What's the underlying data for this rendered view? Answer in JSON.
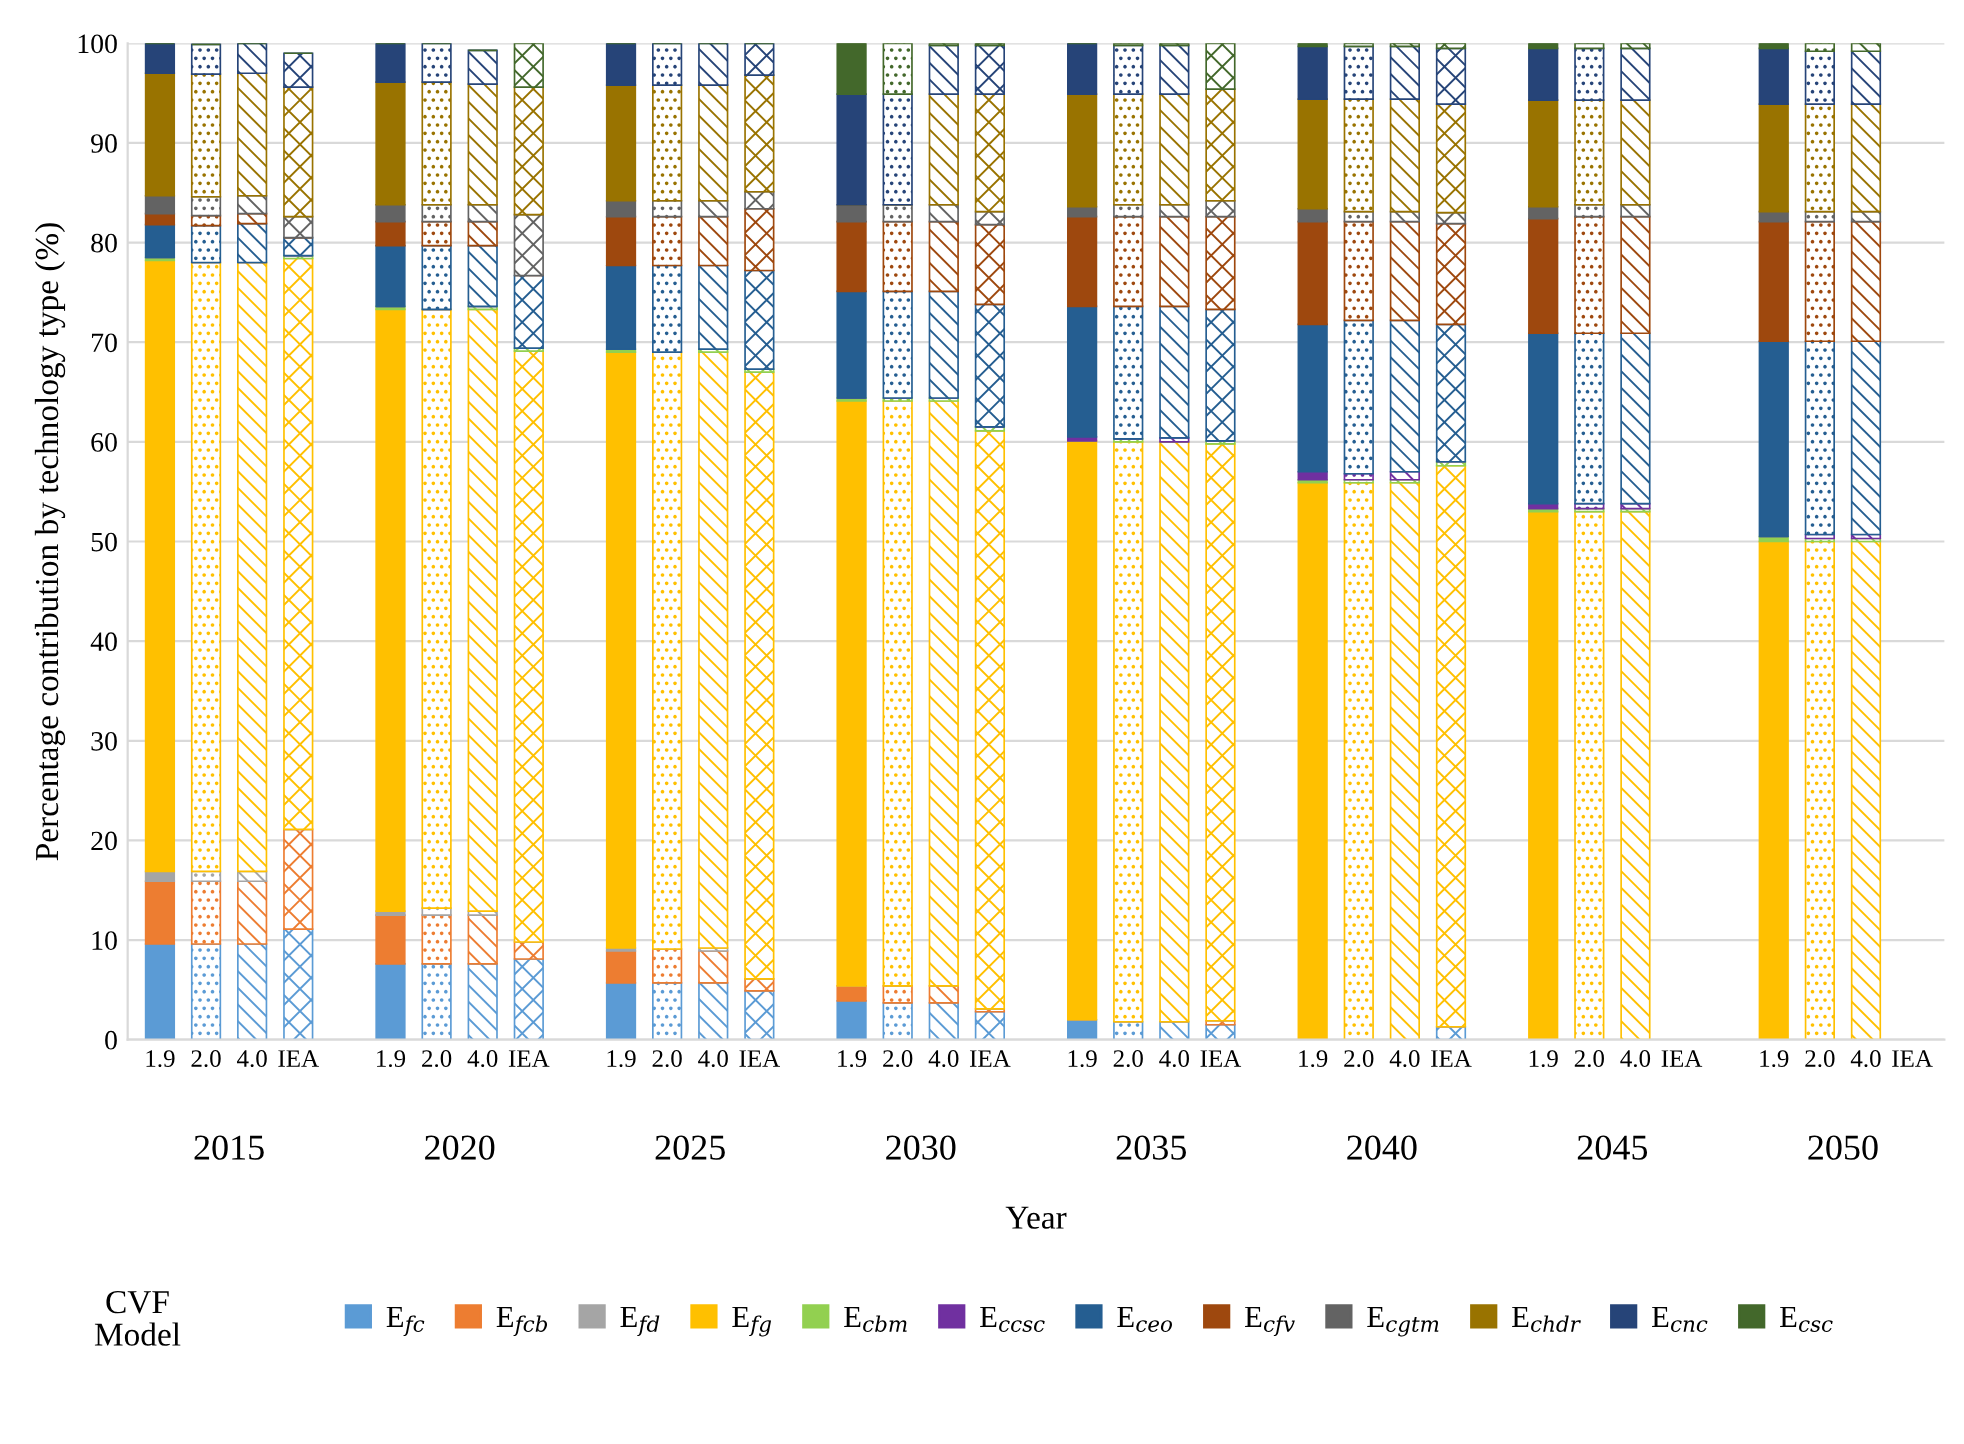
{
  "chart_data": {
    "type": "bar",
    "stacked": true,
    "ylabel": "Percentage contribution by technology type (%)",
    "xlabel": "Year",
    "categories": [
      "1.9",
      "2.0",
      "4.0",
      "IEA",
      null,
      "1.9",
      "2.0",
      "4.0",
      "IEA",
      null,
      "1.9",
      "2.0",
      "4.0",
      "IEA",
      null,
      "1.9",
      "2.0",
      "4.0",
      "IEA",
      null,
      "1.9",
      "2.0",
      "4.0",
      "IEA",
      null,
      "1.9",
      "2.0",
      "4.0",
      "IEA",
      null,
      "1.9",
      "2.0",
      "4.0",
      "IEA",
      null,
      "1.9",
      "2.0",
      "4.0",
      "IEA"
    ],
    "annotations": [
      "2015",
      "2020",
      "2025",
      "2030",
      "2035",
      "2040",
      "2045",
      "2050"
    ],
    "ylim": [
      0,
      100
    ],
    "yticks": [
      0,
      10,
      20,
      30,
      40,
      50,
      60,
      70,
      80,
      90,
      100
    ],
    "grid": "y",
    "legend": "bottom",
    "legend_title": "CVF\nModel",
    "series": [
      {
        "name": "E$_{fc}$",
        "color": "#5b9bd5",
        "values": [
          9.6,
          9.6,
          9.6,
          11.1,
          null,
          7.6,
          7.6,
          7.6,
          8.1,
          null,
          5.7,
          5.7,
          5.7,
          4.9,
          null,
          3.9,
          3.7,
          3.7,
          2.8,
          null,
          2.0,
          1.8,
          1.8,
          1.5,
          null,
          0,
          0,
          0,
          1.3,
          null,
          0,
          0,
          0,
          null,
          null,
          0,
          0,
          0,
          null
        ]
      },
      {
        "name": "E$_{fcb}$",
        "color": "#ed7d31",
        "values": [
          6.3,
          6.3,
          6.3,
          10.0,
          null,
          4.9,
          4.9,
          4.9,
          1.7,
          null,
          3.2,
          3.4,
          3.2,
          1.2,
          null,
          1.5,
          1.7,
          1.7,
          0.3,
          null,
          0,
          0,
          0,
          0.4,
          null,
          0,
          0,
          0,
          0,
          null,
          0,
          0,
          0,
          null,
          null,
          0,
          0,
          0,
          null
        ]
      },
      {
        "name": "E$_{fd}$",
        "color": "#a5a5a5",
        "values": [
          1.0,
          1.0,
          1.0,
          0,
          null,
          0.4,
          0.7,
          0.4,
          0,
          null,
          0.3,
          0,
          0.3,
          0,
          null,
          0,
          0,
          0,
          0,
          null,
          0,
          0,
          0,
          0,
          null,
          0,
          0,
          0,
          0,
          null,
          0,
          0,
          0,
          null,
          null,
          0,
          0,
          0,
          null
        ]
      },
      {
        "name": "E$_{fg}$",
        "color": "#ffc000",
        "values": [
          61.3,
          61.1,
          61.1,
          57.3,
          null,
          60.4,
          60.1,
          60.4,
          59.3,
          null,
          59.8,
          59.9,
          59.8,
          60.9,
          null,
          58.7,
          58.7,
          58.7,
          58.0,
          null,
          58.1,
          58.2,
          58.2,
          57.9,
          null,
          55.9,
          55.9,
          55.9,
          56.3,
          null,
          53.0,
          53.0,
          53.0,
          null,
          null,
          50.0,
          50.0,
          50.0,
          null
        ]
      },
      {
        "name": "E$_{cbm}$",
        "color": "#92d050",
        "values": [
          0.3,
          0,
          0,
          0.3,
          null,
          0.3,
          0,
          0.3,
          0.3,
          null,
          0.3,
          0,
          0.3,
          0.3,
          null,
          0.3,
          0.3,
          0.3,
          0.4,
          null,
          0,
          0.3,
          0,
          0.3,
          null,
          0.3,
          0.3,
          0.3,
          0.4,
          null,
          0.3,
          0.3,
          0.3,
          null,
          null,
          0.5,
          0.3,
          0.3,
          null
        ]
      },
      {
        "name": "E$_{ccsc}$",
        "color": "#7030a0",
        "values": [
          0,
          0,
          0,
          0,
          null,
          0,
          0,
          0,
          0,
          null,
          0,
          0,
          0,
          0,
          null,
          0,
          0,
          0,
          0,
          null,
          0.4,
          0,
          0.4,
          0,
          null,
          0.8,
          0.6,
          0.8,
          0,
          null,
          0.5,
          0.5,
          0.5,
          null,
          null,
          0,
          0.4,
          0.4,
          null
        ]
      },
      {
        "name": "E$_{ceo}$",
        "color": "#255e91",
        "values": [
          3.3,
          3.7,
          3.9,
          1.8,
          null,
          6.1,
          6.4,
          6.1,
          7.3,
          null,
          8.4,
          8.7,
          8.4,
          9.9,
          null,
          10.7,
          10.7,
          10.7,
          12.3,
          null,
          13.1,
          13.3,
          13.2,
          13.2,
          null,
          14.8,
          15.4,
          15.2,
          13.8,
          null,
          17.1,
          17.1,
          17.1,
          null,
          null,
          19.6,
          19.4,
          19.4,
          null
        ]
      },
      {
        "name": "E$_{cfv}$",
        "color": "#9e480e",
        "values": [
          1.1,
          1.0,
          1.0,
          0,
          null,
          2.4,
          2.4,
          2.4,
          0,
          null,
          4.9,
          4.9,
          4.9,
          6.2,
          null,
          7.0,
          7.0,
          7.0,
          8.0,
          null,
          9.0,
          9.0,
          9.0,
          9.3,
          null,
          10.3,
          9.9,
          9.9,
          10.1,
          null,
          11.5,
          11.7,
          11.7,
          null,
          null,
          12.0,
          12.0,
          12.0,
          null
        ]
      },
      {
        "name": "E$_{cgtm}$",
        "color": "#636363",
        "values": [
          1.8,
          1.9,
          1.8,
          2.1,
          null,
          1.7,
          1.7,
          1.7,
          6.1,
          null,
          1.6,
          1.6,
          1.6,
          1.7,
          null,
          1.7,
          1.7,
          1.7,
          1.3,
          null,
          1.0,
          1.2,
          1.2,
          1.6,
          null,
          1.3,
          1.0,
          1.0,
          1.1,
          null,
          1.2,
          1.2,
          1.2,
          null,
          null,
          1.0,
          1.0,
          1.0,
          null
        ]
      },
      {
        "name": "E$_{chdr}$",
        "color": "#997300",
        "values": [
          12.3,
          12.3,
          12.3,
          13.0,
          null,
          12.3,
          12.3,
          12.1,
          12.8,
          null,
          11.6,
          11.6,
          11.6,
          11.7,
          null,
          0,
          0,
          11.1,
          11.8,
          null,
          11.3,
          11.1,
          11.1,
          11.2,
          null,
          11.0,
          11.3,
          11.3,
          10.9,
          null,
          10.7,
          10.5,
          10.5,
          null,
          null,
          10.8,
          10.8,
          10.8,
          null
        ]
      },
      {
        "name": "E$_{cnc}$",
        "color": "#264478",
        "values": [
          3.0,
          3.0,
          3.0,
          3.4,
          null,
          3.9,
          3.9,
          3.4,
          0,
          null,
          4.2,
          4.2,
          4.2,
          3.2,
          null,
          11.1,
          11.1,
          4.9,
          4.9,
          null,
          5.1,
          4.9,
          4.9,
          0,
          null,
          5.3,
          5.3,
          5.3,
          5.6,
          null,
          5.2,
          5.2,
          5.2,
          null,
          null,
          5.6,
          5.3,
          5.3,
          null
        ]
      },
      {
        "name": "E$_{csc}$",
        "color": "#43682b",
        "values": [
          0,
          0,
          0,
          0,
          null,
          0,
          0,
          0,
          4.4,
          null,
          0,
          0,
          0,
          0,
          null,
          5.1,
          5.1,
          0.2,
          0.2,
          null,
          0,
          0.2,
          0.2,
          4.6,
          null,
          0.3,
          0.3,
          0.3,
          0.5,
          null,
          0.5,
          0.5,
          0.5,
          null,
          null,
          0.5,
          0.8,
          0.8,
          null
        ]
      }
    ]
  }
}
